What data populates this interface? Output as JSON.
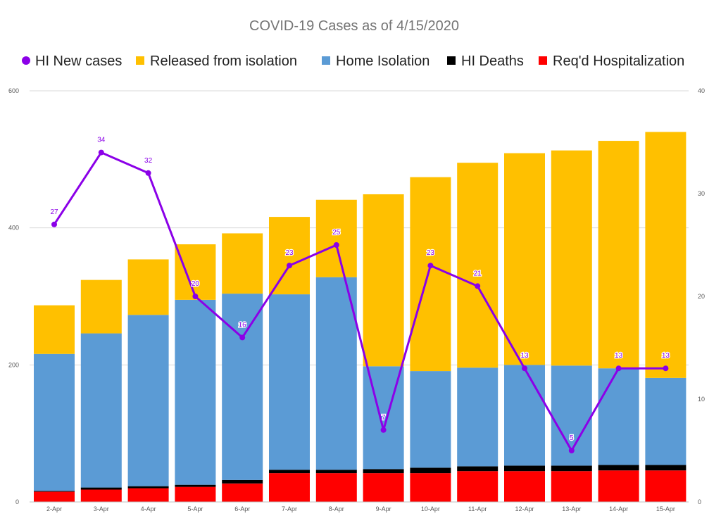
{
  "chart_data": {
    "type": "bar",
    "title": "COVID-19 Cases as of 4/15/2020",
    "categories": [
      "2-Apr",
      "3-Apr",
      "4-Apr",
      "5-Apr",
      "6-Apr",
      "7-Apr",
      "8-Apr",
      "9-Apr",
      "10-Apr",
      "11-Apr",
      "12-Apr",
      "13-Apr",
      "14-Apr",
      "15-Apr"
    ],
    "stacked": true,
    "y_left": {
      "lim": [
        0,
        600
      ],
      "ticks": [
        "0",
        "200",
        "400",
        "600"
      ]
    },
    "y_right": {
      "lim": [
        0,
        40
      ],
      "ticks": [
        "0",
        "10",
        "20",
        "30",
        "40"
      ]
    },
    "grid": true,
    "legend_position": "top",
    "legend": [
      {
        "name": "HI New cases",
        "marker": "circle",
        "color": "#8B00E8"
      },
      {
        "name": "Released from isolation",
        "marker": "square",
        "color": "#FFC000"
      },
      {
        "name": "Home Isolation",
        "marker": "square",
        "color": "#5B9BD5"
      },
      {
        "name": "HI Deaths",
        "marker": "square",
        "color": "#000000"
      },
      {
        "name": "Req'd Hospitalization",
        "marker": "square",
        "color": "#FF0000"
      }
    ],
    "bar_series": [
      {
        "name": "Req'd Hospitalization",
        "color": "#FF0000",
        "values": [
          15,
          18,
          20,
          22,
          27,
          42,
          42,
          42,
          42,
          45,
          45,
          45,
          46,
          46
        ]
      },
      {
        "name": "HI Deaths",
        "color": "#000000",
        "values": [
          1,
          3,
          3,
          3,
          5,
          5,
          5,
          6,
          8,
          7,
          8,
          8,
          8,
          8
        ]
      },
      {
        "name": "Home Isolation",
        "color": "#5B9BD5",
        "values": [
          200,
          225,
          250,
          270,
          272,
          256,
          281,
          150,
          141,
          144,
          147,
          146,
          141,
          127
        ]
      },
      {
        "name": "Released from isolation",
        "color": "#FFC000",
        "values": [
          71,
          78,
          81,
          81,
          88,
          113,
          113,
          251,
          283,
          299,
          309,
          314,
          332,
          359
        ]
      }
    ],
    "line_series": {
      "name": "HI New cases",
      "color": "#8B00E8",
      "axis": "right",
      "values": [
        27,
        34,
        32,
        20,
        16,
        23,
        25,
        7,
        23,
        21,
        13,
        5,
        13,
        13
      ],
      "labels": [
        "27",
        "34",
        "32",
        "20",
        "16",
        "23",
        "25",
        "7",
        "23",
        "21",
        "13",
        "5",
        "13",
        "13"
      ]
    }
  }
}
